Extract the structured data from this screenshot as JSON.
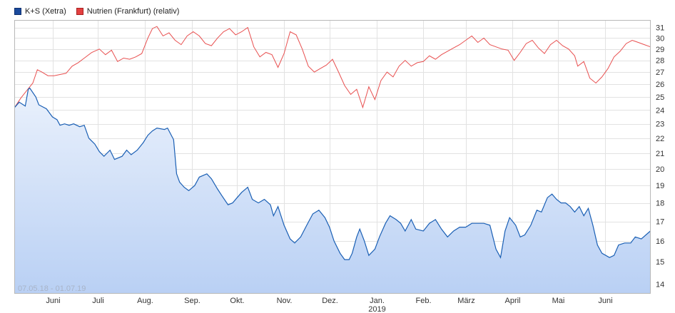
{
  "legend": [
    {
      "label": "K+S (Xetra)",
      "color": "#1a4a9c"
    },
    {
      "label": "Nutrien (Frankfurt) (relativ)",
      "color": "#e34040"
    }
  ],
  "range_text": "07.05.18 - 01.07.19",
  "chart_data": {
    "type": "line",
    "ylim": [
      13.6,
      31.7
    ],
    "y_scale": "log",
    "y_ticks": [
      14,
      15,
      16,
      17,
      18,
      19,
      20,
      21,
      22,
      23,
      24,
      25,
      26,
      27,
      28,
      29,
      30,
      31
    ],
    "x_labels": [
      "Juni",
      "Juli",
      "Aug.",
      "Sep.",
      "Okt.",
      "Nov.",
      "Dez.",
      "Jan.",
      "Feb.",
      "März",
      "April",
      "Mai",
      "Juni"
    ],
    "x_sublabel": "2019",
    "x_start": "2018-05-07",
    "x_end": "2019-07-01",
    "month_starts": [
      "2018-06-01",
      "2018-07-01",
      "2018-08-01",
      "2018-09-01",
      "2018-10-01",
      "2018-11-01",
      "2018-12-01",
      "2019-01-01",
      "2019-02-01",
      "2019-03-01",
      "2019-04-01",
      "2019-05-01",
      "2019-06-01"
    ],
    "series": [
      {
        "name": "K+S (Xetra)",
        "color": "#1a5fb4",
        "fill": true,
        "points": [
          [
            "2018-05-07",
            24.2
          ],
          [
            "2018-05-10",
            24.6
          ],
          [
            "2018-05-14",
            24.3
          ],
          [
            "2018-05-16",
            25.6
          ],
          [
            "2018-05-17",
            25.7
          ],
          [
            "2018-05-21",
            25.0
          ],
          [
            "2018-05-23",
            24.4
          ],
          [
            "2018-05-28",
            24.1
          ],
          [
            "2018-06-01",
            23.5
          ],
          [
            "2018-06-04",
            23.3
          ],
          [
            "2018-06-06",
            22.9
          ],
          [
            "2018-06-09",
            23.0
          ],
          [
            "2018-06-12",
            22.9
          ],
          [
            "2018-06-15",
            23.0
          ],
          [
            "2018-06-19",
            22.8
          ],
          [
            "2018-06-22",
            22.9
          ],
          [
            "2018-06-25",
            22.0
          ],
          [
            "2018-06-29",
            21.6
          ],
          [
            "2018-07-02",
            21.1
          ],
          [
            "2018-07-05",
            20.8
          ],
          [
            "2018-07-09",
            21.2
          ],
          [
            "2018-07-12",
            20.6
          ],
          [
            "2018-07-17",
            20.8
          ],
          [
            "2018-07-20",
            21.2
          ],
          [
            "2018-07-23",
            20.9
          ],
          [
            "2018-07-27",
            21.2
          ],
          [
            "2018-07-31",
            21.7
          ],
          [
            "2018-08-03",
            22.2
          ],
          [
            "2018-08-06",
            22.5
          ],
          [
            "2018-08-09",
            22.7
          ],
          [
            "2018-08-14",
            22.6
          ],
          [
            "2018-08-16",
            22.7
          ],
          [
            "2018-08-20",
            21.9
          ],
          [
            "2018-08-22",
            19.7
          ],
          [
            "2018-08-24",
            19.2
          ],
          [
            "2018-08-27",
            18.9
          ],
          [
            "2018-08-30",
            18.7
          ],
          [
            "2018-09-03",
            19.0
          ],
          [
            "2018-09-06",
            19.5
          ],
          [
            "2018-09-11",
            19.7
          ],
          [
            "2018-09-14",
            19.4
          ],
          [
            "2018-09-18",
            18.8
          ],
          [
            "2018-09-21",
            18.4
          ],
          [
            "2018-09-25",
            17.9
          ],
          [
            "2018-09-28",
            18.0
          ],
          [
            "2018-10-01",
            18.3
          ],
          [
            "2018-10-04",
            18.6
          ],
          [
            "2018-10-08",
            18.9
          ],
          [
            "2018-10-11",
            18.2
          ],
          [
            "2018-10-15",
            18.0
          ],
          [
            "2018-10-19",
            18.2
          ],
          [
            "2018-10-23",
            17.9
          ],
          [
            "2018-10-25",
            17.3
          ],
          [
            "2018-10-28",
            17.8
          ],
          [
            "2018-11-01",
            16.8
          ],
          [
            "2018-11-05",
            16.1
          ],
          [
            "2018-11-08",
            15.9
          ],
          [
            "2018-11-12",
            16.2
          ],
          [
            "2018-11-16",
            16.8
          ],
          [
            "2018-11-20",
            17.4
          ],
          [
            "2018-11-24",
            17.6
          ],
          [
            "2018-11-28",
            17.2
          ],
          [
            "2018-12-01",
            16.7
          ],
          [
            "2018-12-04",
            16.0
          ],
          [
            "2018-12-08",
            15.4
          ],
          [
            "2018-12-11",
            15.1
          ],
          [
            "2018-12-14",
            15.1
          ],
          [
            "2018-12-16",
            15.4
          ],
          [
            "2018-12-19",
            16.2
          ],
          [
            "2018-12-21",
            16.6
          ],
          [
            "2018-12-24",
            16.0
          ],
          [
            "2018-12-27",
            15.3
          ],
          [
            "2018-12-31",
            15.6
          ],
          [
            "2019-01-03",
            16.2
          ],
          [
            "2019-01-07",
            16.9
          ],
          [
            "2019-01-10",
            17.3
          ],
          [
            "2019-01-14",
            17.1
          ],
          [
            "2019-01-17",
            16.9
          ],
          [
            "2019-01-20",
            16.5
          ],
          [
            "2019-01-24",
            17.1
          ],
          [
            "2019-01-27",
            16.6
          ],
          [
            "2019-02-01",
            16.5
          ],
          [
            "2019-02-05",
            16.9
          ],
          [
            "2019-02-09",
            17.1
          ],
          [
            "2019-02-13",
            16.6
          ],
          [
            "2019-02-17",
            16.2
          ],
          [
            "2019-02-21",
            16.5
          ],
          [
            "2019-02-25",
            16.7
          ],
          [
            "2019-03-01",
            16.7
          ],
          [
            "2019-03-05",
            16.9
          ],
          [
            "2019-03-09",
            16.9
          ],
          [
            "2019-03-13",
            16.9
          ],
          [
            "2019-03-17",
            16.8
          ],
          [
            "2019-03-21",
            15.6
          ],
          [
            "2019-03-24",
            15.2
          ],
          [
            "2019-03-27",
            16.5
          ],
          [
            "2019-03-30",
            17.2
          ],
          [
            "2019-04-03",
            16.8
          ],
          [
            "2019-04-06",
            16.2
          ],
          [
            "2019-04-09",
            16.3
          ],
          [
            "2019-04-13",
            16.8
          ],
          [
            "2019-04-17",
            17.6
          ],
          [
            "2019-04-20",
            17.5
          ],
          [
            "2019-04-24",
            18.3
          ],
          [
            "2019-04-27",
            18.5
          ],
          [
            "2019-04-30",
            18.2
          ],
          [
            "2019-05-03",
            18.0
          ],
          [
            "2019-05-06",
            18.0
          ],
          [
            "2019-05-09",
            17.8
          ],
          [
            "2019-05-12",
            17.5
          ],
          [
            "2019-05-15",
            17.8
          ],
          [
            "2019-05-18",
            17.3
          ],
          [
            "2019-05-21",
            17.7
          ],
          [
            "2019-05-24",
            16.8
          ],
          [
            "2019-05-27",
            15.8
          ],
          [
            "2019-05-30",
            15.4
          ],
          [
            "2019-06-04",
            15.2
          ],
          [
            "2019-06-07",
            15.3
          ],
          [
            "2019-06-10",
            15.8
          ],
          [
            "2019-06-14",
            15.9
          ],
          [
            "2019-06-18",
            15.9
          ],
          [
            "2019-06-21",
            16.2
          ],
          [
            "2019-06-25",
            16.1
          ],
          [
            "2019-07-01",
            16.5
          ]
        ]
      },
      {
        "name": "Nutrien (Frankfurt) (relativ)",
        "color": "#e85050",
        "fill": false,
        "points": [
          [
            "2018-05-07",
            24.2
          ],
          [
            "2018-05-11",
            24.9
          ],
          [
            "2018-05-15",
            25.5
          ],
          [
            "2018-05-19",
            26.1
          ],
          [
            "2018-05-22",
            27.2
          ],
          [
            "2018-05-25",
            27.0
          ],
          [
            "2018-05-29",
            26.7
          ],
          [
            "2018-06-02",
            26.7
          ],
          [
            "2018-06-06",
            26.8
          ],
          [
            "2018-06-10",
            26.9
          ],
          [
            "2018-06-14",
            27.5
          ],
          [
            "2018-06-18",
            27.8
          ],
          [
            "2018-06-22",
            28.2
          ],
          [
            "2018-06-27",
            28.7
          ],
          [
            "2018-07-02",
            29.0
          ],
          [
            "2018-07-06",
            28.5
          ],
          [
            "2018-07-10",
            28.9
          ],
          [
            "2018-07-14",
            27.9
          ],
          [
            "2018-07-18",
            28.2
          ],
          [
            "2018-07-22",
            28.1
          ],
          [
            "2018-07-26",
            28.3
          ],
          [
            "2018-07-30",
            28.6
          ],
          [
            "2018-08-03",
            30.0
          ],
          [
            "2018-08-06",
            30.9
          ],
          [
            "2018-08-09",
            31.1
          ],
          [
            "2018-08-13",
            30.2
          ],
          [
            "2018-08-17",
            30.5
          ],
          [
            "2018-08-21",
            29.8
          ],
          [
            "2018-08-25",
            29.4
          ],
          [
            "2018-08-29",
            30.2
          ],
          [
            "2018-09-02",
            30.6
          ],
          [
            "2018-09-06",
            30.2
          ],
          [
            "2018-09-10",
            29.5
          ],
          [
            "2018-09-14",
            29.3
          ],
          [
            "2018-09-18",
            30.0
          ],
          [
            "2018-09-22",
            30.6
          ],
          [
            "2018-09-26",
            30.9
          ],
          [
            "2018-09-30",
            30.3
          ],
          [
            "2018-10-04",
            30.6
          ],
          [
            "2018-10-08",
            31.0
          ],
          [
            "2018-10-12",
            29.2
          ],
          [
            "2018-10-16",
            28.3
          ],
          [
            "2018-10-20",
            28.7
          ],
          [
            "2018-10-24",
            28.5
          ],
          [
            "2018-10-28",
            27.4
          ],
          [
            "2018-11-01",
            28.6
          ],
          [
            "2018-11-05",
            30.6
          ],
          [
            "2018-11-09",
            30.3
          ],
          [
            "2018-11-13",
            29.0
          ],
          [
            "2018-11-17",
            27.5
          ],
          [
            "2018-11-21",
            27.0
          ],
          [
            "2018-11-25",
            27.3
          ],
          [
            "2018-11-29",
            27.6
          ],
          [
            "2018-12-03",
            28.1
          ],
          [
            "2018-12-07",
            27.0
          ],
          [
            "2018-12-11",
            25.9
          ],
          [
            "2018-12-15",
            25.2
          ],
          [
            "2018-12-19",
            25.6
          ],
          [
            "2018-12-23",
            24.2
          ],
          [
            "2018-12-27",
            25.8
          ],
          [
            "2018-12-31",
            24.8
          ],
          [
            "2019-01-04",
            26.3
          ],
          [
            "2019-01-08",
            27.0
          ],
          [
            "2019-01-12",
            26.6
          ],
          [
            "2019-01-16",
            27.5
          ],
          [
            "2019-01-20",
            28.0
          ],
          [
            "2019-01-24",
            27.5
          ],
          [
            "2019-01-28",
            27.8
          ],
          [
            "2019-02-01",
            27.9
          ],
          [
            "2019-02-05",
            28.4
          ],
          [
            "2019-02-09",
            28.1
          ],
          [
            "2019-02-13",
            28.5
          ],
          [
            "2019-02-17",
            28.8
          ],
          [
            "2019-02-21",
            29.1
          ],
          [
            "2019-02-25",
            29.4
          ],
          [
            "2019-03-01",
            29.8
          ],
          [
            "2019-03-05",
            30.2
          ],
          [
            "2019-03-09",
            29.6
          ],
          [
            "2019-03-13",
            30.0
          ],
          [
            "2019-03-17",
            29.4
          ],
          [
            "2019-03-21",
            29.2
          ],
          [
            "2019-03-25",
            29.0
          ],
          [
            "2019-03-29",
            28.9
          ],
          [
            "2019-04-02",
            28.0
          ],
          [
            "2019-04-06",
            28.7
          ],
          [
            "2019-04-10",
            29.5
          ],
          [
            "2019-04-14",
            29.8
          ],
          [
            "2019-04-18",
            29.1
          ],
          [
            "2019-04-22",
            28.6
          ],
          [
            "2019-04-26",
            29.4
          ],
          [
            "2019-04-30",
            29.8
          ],
          [
            "2019-05-04",
            29.3
          ],
          [
            "2019-05-08",
            29.0
          ],
          [
            "2019-05-12",
            28.4
          ],
          [
            "2019-05-14",
            27.5
          ],
          [
            "2019-05-18",
            27.9
          ],
          [
            "2019-05-22",
            26.5
          ],
          [
            "2019-05-26",
            26.1
          ],
          [
            "2019-05-30",
            26.6
          ],
          [
            "2019-06-03",
            27.3
          ],
          [
            "2019-06-07",
            28.3
          ],
          [
            "2019-06-11",
            28.8
          ],
          [
            "2019-06-15",
            29.5
          ],
          [
            "2019-06-19",
            29.8
          ],
          [
            "2019-06-23",
            29.6
          ],
          [
            "2019-06-27",
            29.4
          ],
          [
            "2019-07-01",
            29.2
          ]
        ]
      }
    ]
  }
}
